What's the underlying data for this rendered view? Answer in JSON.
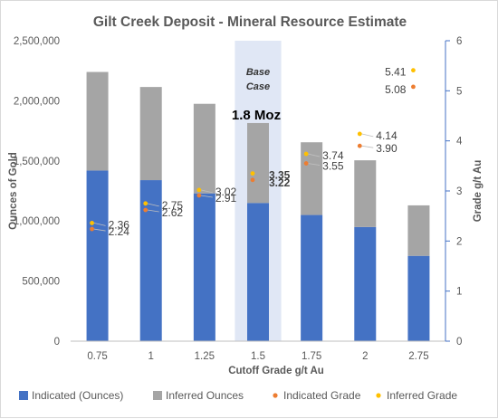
{
  "chart_data": {
    "type": "bar",
    "title": "Gilt Creek Deposit - Mineral Resource Estimate",
    "xlabel": "Cutoff Grade g/t Au",
    "ylabel": "Ounces of Gold",
    "y2label": "Grade g/t Au",
    "categories": [
      "0.75",
      "1",
      "1.25",
      "1.5",
      "1.75",
      "2",
      "2.75"
    ],
    "ylim": [
      0,
      2500000
    ],
    "y_ticks": [
      "0",
      "500,000",
      "1,000,000",
      "1,500,000",
      "2,000,000",
      "2,500,000"
    ],
    "y2lim": [
      0,
      6
    ],
    "y2_ticks": [
      "0",
      "1",
      "2",
      "3",
      "4",
      "5",
      "6"
    ],
    "stacked": true,
    "series": [
      {
        "name": "Indicated (Ounces)",
        "kind": "bar",
        "axis": "left",
        "color": "#4472c4",
        "values": [
          1420000,
          1340000,
          1230000,
          1150000,
          1050000,
          950000,
          710000
        ]
      },
      {
        "name": "Inferred Ounces",
        "kind": "bar",
        "axis": "left",
        "color": "#a5a5a5",
        "values": [
          820000,
          775000,
          745000,
          665000,
          605000,
          555000,
          420000
        ]
      },
      {
        "name": "Indicated Grade",
        "kind": "scatter",
        "axis": "right",
        "color": "#ed7d31",
        "values": [
          2.24,
          2.62,
          2.91,
          3.22,
          3.55,
          3.9,
          5.08
        ],
        "labels": [
          "2.24",
          "2.62",
          "2.91",
          "3.22",
          "3.55",
          "3.90",
          "5.08"
        ]
      },
      {
        "name": "Inferred Grade",
        "kind": "scatter",
        "axis": "right",
        "color": "#ffc000",
        "values": [
          2.36,
          2.75,
          3.02,
          3.35,
          3.74,
          4.14,
          5.41
        ],
        "labels": [
          "2.36",
          "2.75",
          "3.02",
          "3.35",
          "3.74",
          "4.14",
          "5.41"
        ]
      }
    ],
    "highlight": {
      "category": "1.5",
      "label_line1": "Base",
      "label_line2": "Case",
      "callout": "1.8 Moz"
    },
    "grid": false,
    "legend": "bottom"
  }
}
